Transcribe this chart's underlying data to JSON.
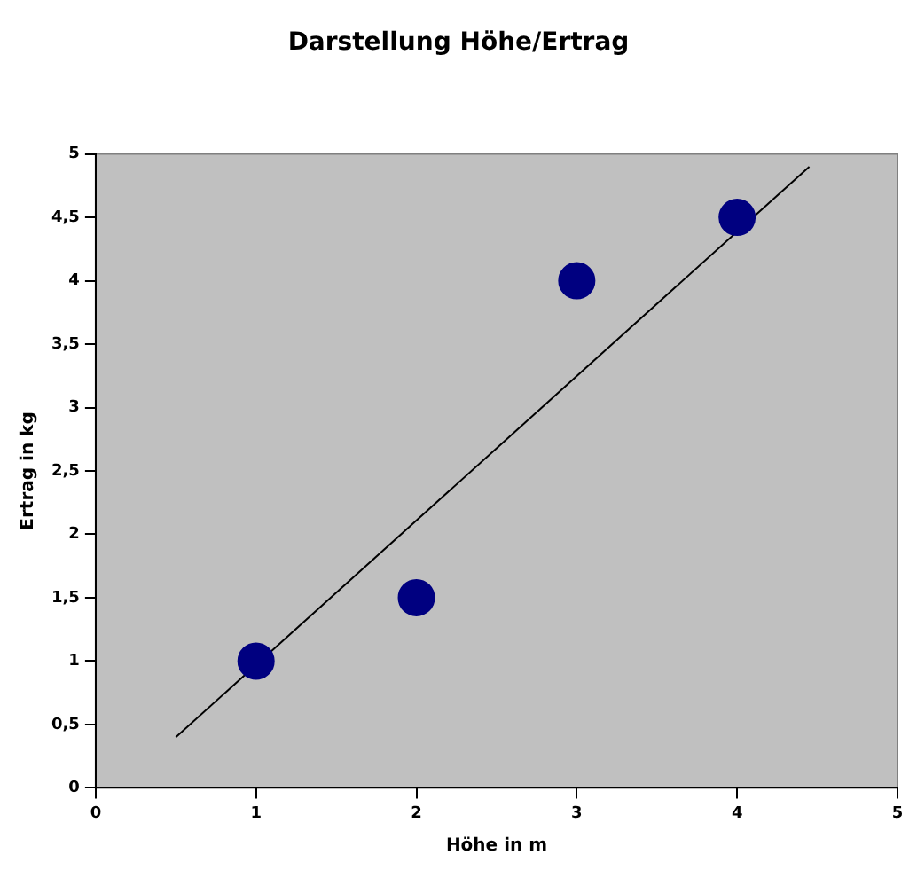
{
  "chart_data": {
    "type": "scatter",
    "title": "Darstellung Höhe/Ertrag",
    "xlabel": "Höhe in m",
    "ylabel": "Ertrag in kg",
    "xlim": [
      0,
      5
    ],
    "xticks": [
      0,
      1,
      2,
      3,
      4,
      5
    ],
    "ylim": [
      0,
      5
    ],
    "yticks": [
      0,
      {
        "value": 0.5,
        "label": "0,5"
      },
      1,
      {
        "value": 1.5,
        "label": "1,5"
      },
      2,
      {
        "value": 2.5,
        "label": "2,5"
      },
      3,
      {
        "value": 3.5,
        "label": "3,5"
      },
      4,
      {
        "value": 4.5,
        "label": "4,5"
      },
      5
    ],
    "grid": false,
    "legend": false,
    "marker": "circle",
    "series": [
      {
        "color": "#000080",
        "x": [
          1,
          2,
          3,
          4
        ],
        "values": [
          1,
          1.5,
          4,
          4.5
        ]
      },
      {
        "type": "line",
        "color": "#000000",
        "marker": "none",
        "x": [
          0.5,
          4.45
        ],
        "values": [
          0.4,
          4.9
        ]
      }
    ]
  }
}
